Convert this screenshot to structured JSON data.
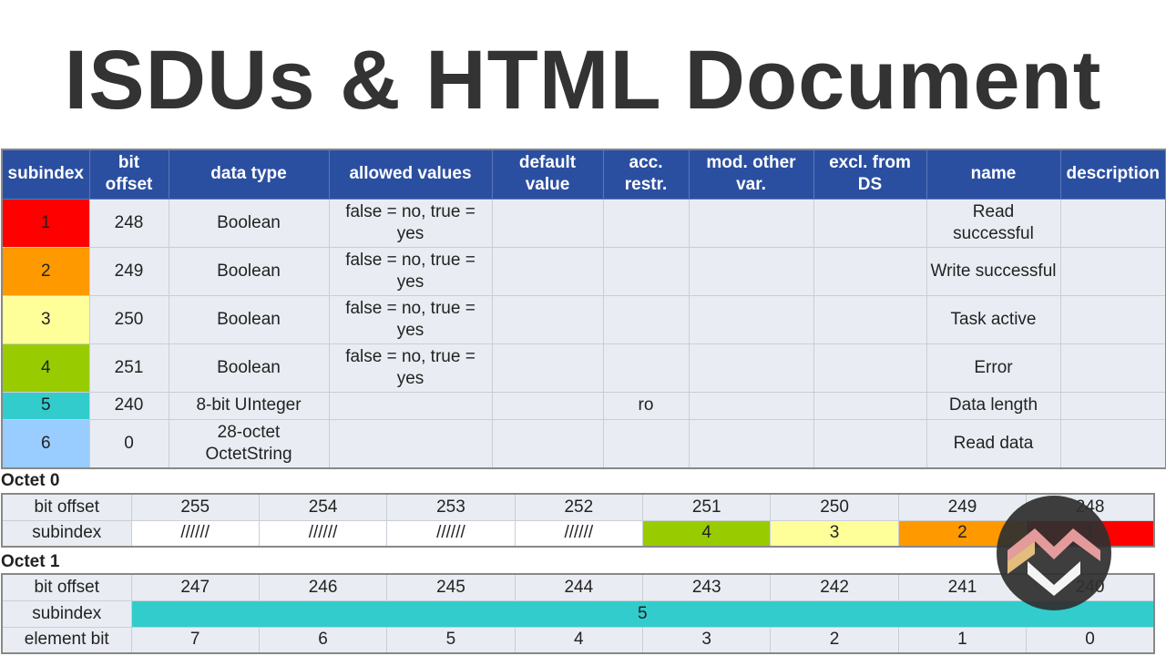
{
  "title": "ISDUs & HTML Document",
  "colors": {
    "header_bg": "#2b4fa0",
    "cell_bg": "#e9edf3",
    "sub1": "#ff0000",
    "sub2": "#ff9900",
    "sub3": "#ffff99",
    "sub4": "#99cc00",
    "sub5": "#33cccc",
    "sub6": "#99ccff"
  },
  "main_table": {
    "headers": [
      "subindex",
      "bit offset",
      "data type",
      "allowed values",
      "default value",
      "acc. restr.",
      "mod. other var.",
      "excl. from DS",
      "name",
      "description"
    ],
    "rows": [
      {
        "subindex": "1",
        "bit_offset": "248",
        "data_type": "Boolean",
        "allowed_values": "false = no, true = yes",
        "default_value": "",
        "acc_restr": "",
        "mod_other_var": "",
        "excl_from_ds": "",
        "name": "Read successful",
        "description": ""
      },
      {
        "subindex": "2",
        "bit_offset": "249",
        "data_type": "Boolean",
        "allowed_values": "false = no, true = yes",
        "default_value": "",
        "acc_restr": "",
        "mod_other_var": "",
        "excl_from_ds": "",
        "name": "Write successful",
        "description": ""
      },
      {
        "subindex": "3",
        "bit_offset": "250",
        "data_type": "Boolean",
        "allowed_values": "false = no, true = yes",
        "default_value": "",
        "acc_restr": "",
        "mod_other_var": "",
        "excl_from_ds": "",
        "name": "Task active",
        "description": ""
      },
      {
        "subindex": "4",
        "bit_offset": "251",
        "data_type": "Boolean",
        "allowed_values": "false = no, true = yes",
        "default_value": "",
        "acc_restr": "",
        "mod_other_var": "",
        "excl_from_ds": "",
        "name": "Error",
        "description": ""
      },
      {
        "subindex": "5",
        "bit_offset": "240",
        "data_type": "8-bit UInteger",
        "allowed_values": "",
        "default_value": "",
        "acc_restr": "ro",
        "mod_other_var": "",
        "excl_from_ds": "",
        "name": "Data length",
        "description": ""
      },
      {
        "subindex": "6",
        "bit_offset": "0",
        "data_type": "28-octet OctetString",
        "allowed_values": "",
        "default_value": "",
        "acc_restr": "",
        "mod_other_var": "",
        "excl_from_ds": "",
        "name": "Read data",
        "description": ""
      }
    ]
  },
  "octet0": {
    "label": "Octet 0",
    "bit_offset_label": "bit offset",
    "subindex_label": "subindex",
    "bit_offsets": [
      "255",
      "254",
      "253",
      "252",
      "251",
      "250",
      "249",
      "248"
    ],
    "subindexes": [
      "//////",
      "//////",
      "//////",
      "//////",
      "4",
      "3",
      "2",
      "1"
    ]
  },
  "octet1": {
    "label": "Octet 1",
    "bit_offset_label": "bit offset",
    "subindex_label": "subindex",
    "element_bit_label": "element bit",
    "bit_offsets": [
      "247",
      "246",
      "245",
      "244",
      "243",
      "242",
      "241",
      "240"
    ],
    "subindex_value": "5",
    "element_bits": [
      "7",
      "6",
      "5",
      "4",
      "3",
      "2",
      "1",
      "0"
    ]
  }
}
